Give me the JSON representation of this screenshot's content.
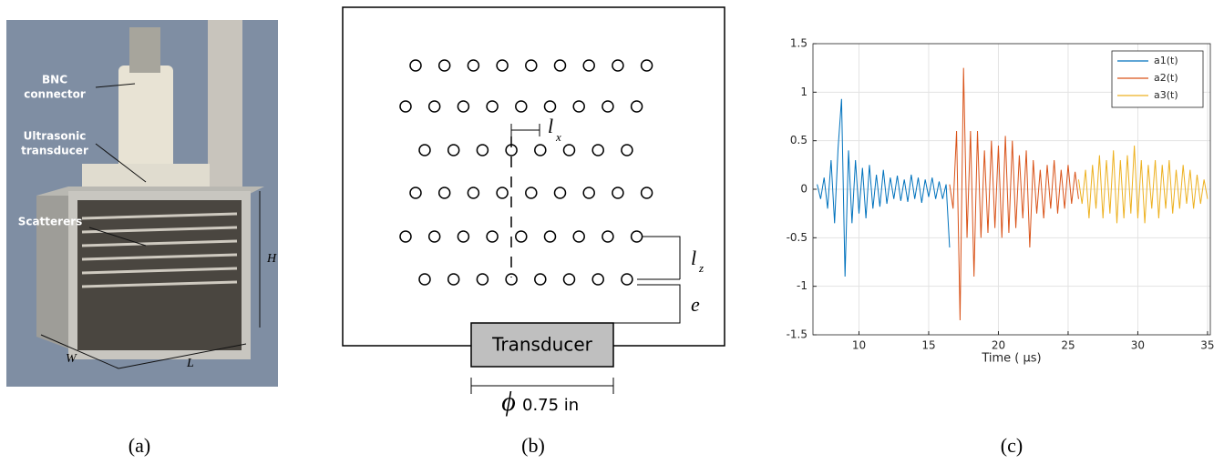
{
  "panel_a": {
    "labels": {
      "bnc_1": "BNC",
      "bnc_2": "connector",
      "ultra_1": "Ultrasonic",
      "ultra_2": "transducer",
      "scatterers": "Scatterers",
      "H": "H",
      "W": "W",
      "L": "L"
    },
    "caption": "(a)"
  },
  "panel_b": {
    "lx_main": "l",
    "lx_sub": "x",
    "lz_main": "l",
    "lz_sub": "z",
    "e": "e",
    "transducer": "Transducer",
    "phi": "ϕ",
    "diameter": "0.75 in",
    "caption": "(b)"
  },
  "panel_c": {
    "caption": "(c)"
  },
  "chart_data": {
    "type": "line",
    "xlabel": "Time ( µs)",
    "xlim": [
      6.7,
      35.2
    ],
    "xticks": [
      10,
      15,
      20,
      25,
      30,
      35
    ],
    "ylim": [
      -1.5,
      1.5
    ],
    "yticks": [
      1.5,
      1,
      0.5,
      0,
      -0.5,
      -1,
      -1.5
    ],
    "grid": true,
    "legend": "top-right",
    "series": [
      {
        "name": "a1(t)",
        "color": "#0072bd",
        "x": [
          7,
          7.25,
          7.5,
          7.75,
          8,
          8.25,
          8.5,
          8.75,
          9,
          9.25,
          9.5,
          9.75,
          10,
          10.25,
          10.5,
          10.75,
          11,
          11.25,
          11.5,
          11.75,
          12,
          12.25,
          12.5,
          12.75,
          13,
          13.25,
          13.5,
          13.75,
          14,
          14.25,
          14.5,
          14.75,
          15,
          15.25,
          15.5,
          15.75,
          16,
          16.25,
          16.5
        ],
        "values": [
          0.05,
          -0.1,
          0.12,
          -0.2,
          0.3,
          -0.35,
          0.42,
          0.93,
          -0.9,
          0.4,
          -0.35,
          0.3,
          -0.25,
          0.22,
          -0.3,
          0.25,
          -0.2,
          0.15,
          -0.18,
          0.2,
          -0.15,
          0.12,
          -0.1,
          0.14,
          -0.12,
          0.1,
          -0.13,
          0.15,
          -0.1,
          0.12,
          -0.14,
          0.1,
          -0.08,
          0.12,
          -0.1,
          0.08,
          -0.1,
          0.05,
          -0.6
        ]
      },
      {
        "name": "a2(t)",
        "color": "#d95319",
        "x": [
          16.5,
          16.75,
          17,
          17.25,
          17.5,
          17.75,
          18,
          18.25,
          18.5,
          18.75,
          19,
          19.25,
          19.5,
          19.75,
          20,
          20.25,
          20.5,
          20.75,
          21,
          21.25,
          21.5,
          21.75,
          22,
          22.25,
          22.5,
          22.75,
          23,
          23.25,
          23.5,
          23.75,
          24,
          24.25,
          24.5,
          24.75,
          25,
          25.25,
          25.5,
          25.75
        ],
        "values": [
          0.05,
          -0.2,
          0.6,
          -1.35,
          1.25,
          -0.5,
          0.6,
          -0.9,
          0.6,
          -0.5,
          0.4,
          -0.45,
          0.5,
          -0.4,
          0.45,
          -0.5,
          0.55,
          -0.45,
          0.5,
          -0.4,
          0.35,
          -0.3,
          0.4,
          -0.6,
          0.3,
          -0.25,
          0.2,
          -0.3,
          0.25,
          -0.2,
          0.3,
          -0.25,
          0.2,
          -0.2,
          0.25,
          -0.15,
          0.18,
          -0.1
        ]
      },
      {
        "name": "a3(t)",
        "color": "#edb120",
        "x": [
          25.75,
          26,
          26.25,
          26.5,
          26.75,
          27,
          27.25,
          27.5,
          27.75,
          28,
          28.25,
          28.5,
          28.75,
          29,
          29.25,
          29.5,
          29.75,
          30,
          30.25,
          30.5,
          30.75,
          31,
          31.25,
          31.5,
          31.75,
          32,
          32.25,
          32.5,
          32.75,
          33,
          33.25,
          33.5,
          33.75,
          34,
          34.25,
          34.5,
          34.75,
          35
        ],
        "values": [
          0.1,
          -0.15,
          0.2,
          -0.3,
          0.25,
          -0.2,
          0.35,
          -0.3,
          0.3,
          -0.25,
          0.4,
          -0.35,
          0.3,
          -0.3,
          0.35,
          -0.25,
          0.45,
          -0.3,
          0.3,
          -0.35,
          0.25,
          -0.2,
          0.3,
          -0.3,
          0.25,
          -0.2,
          0.3,
          -0.25,
          0.2,
          -0.2,
          0.25,
          -0.15,
          0.2,
          -0.2,
          0.15,
          -0.15,
          0.1,
          -0.1
        ]
      }
    ]
  }
}
